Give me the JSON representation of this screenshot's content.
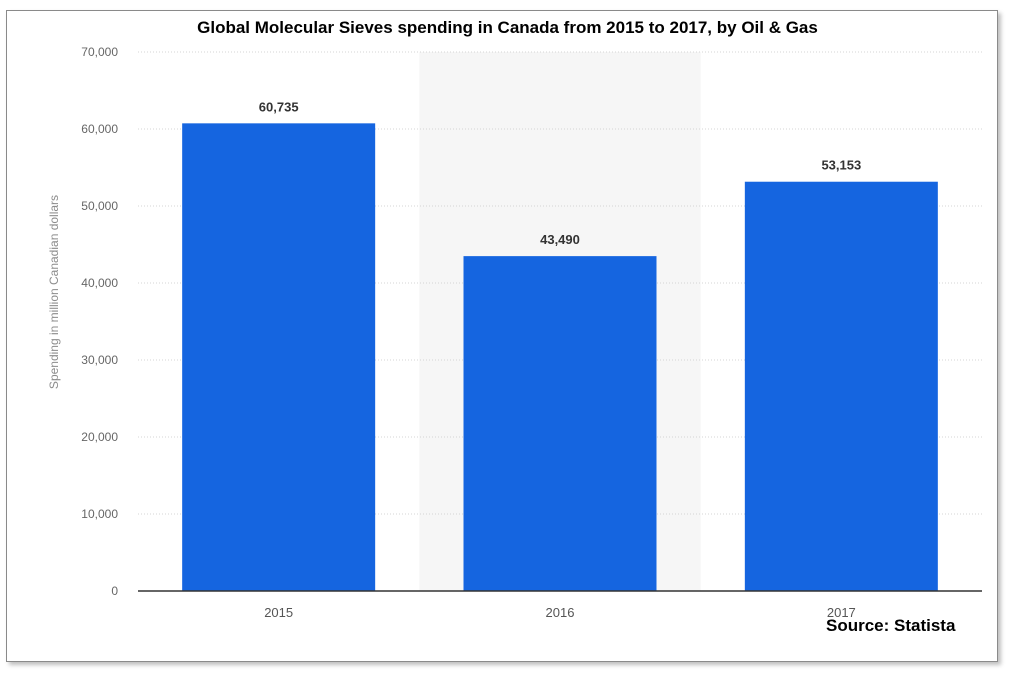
{
  "chart_data": {
    "type": "bar",
    "title": "Global Molecular Sieves spending in Canada from 2015 to 2017, by Oil & Gas",
    "categories": [
      "2015",
      "2016",
      "2017"
    ],
    "values": [
      60735,
      43490,
      53153
    ],
    "value_labels": [
      "60,735",
      "43,490",
      "53,153"
    ],
    "ylabel": "Spending in million Canadian dollars",
    "xlabel": "",
    "ylim": [
      0,
      70000
    ],
    "yticks": [
      0,
      10000,
      20000,
      30000,
      40000,
      50000,
      60000,
      70000
    ],
    "ytick_labels": [
      "0",
      "10,000",
      "20,000",
      "30,000",
      "40,000",
      "50,000",
      "60,000",
      "70,000"
    ],
    "grid": true,
    "bar_color": "#1565e0",
    "source": "Source: Statista"
  }
}
